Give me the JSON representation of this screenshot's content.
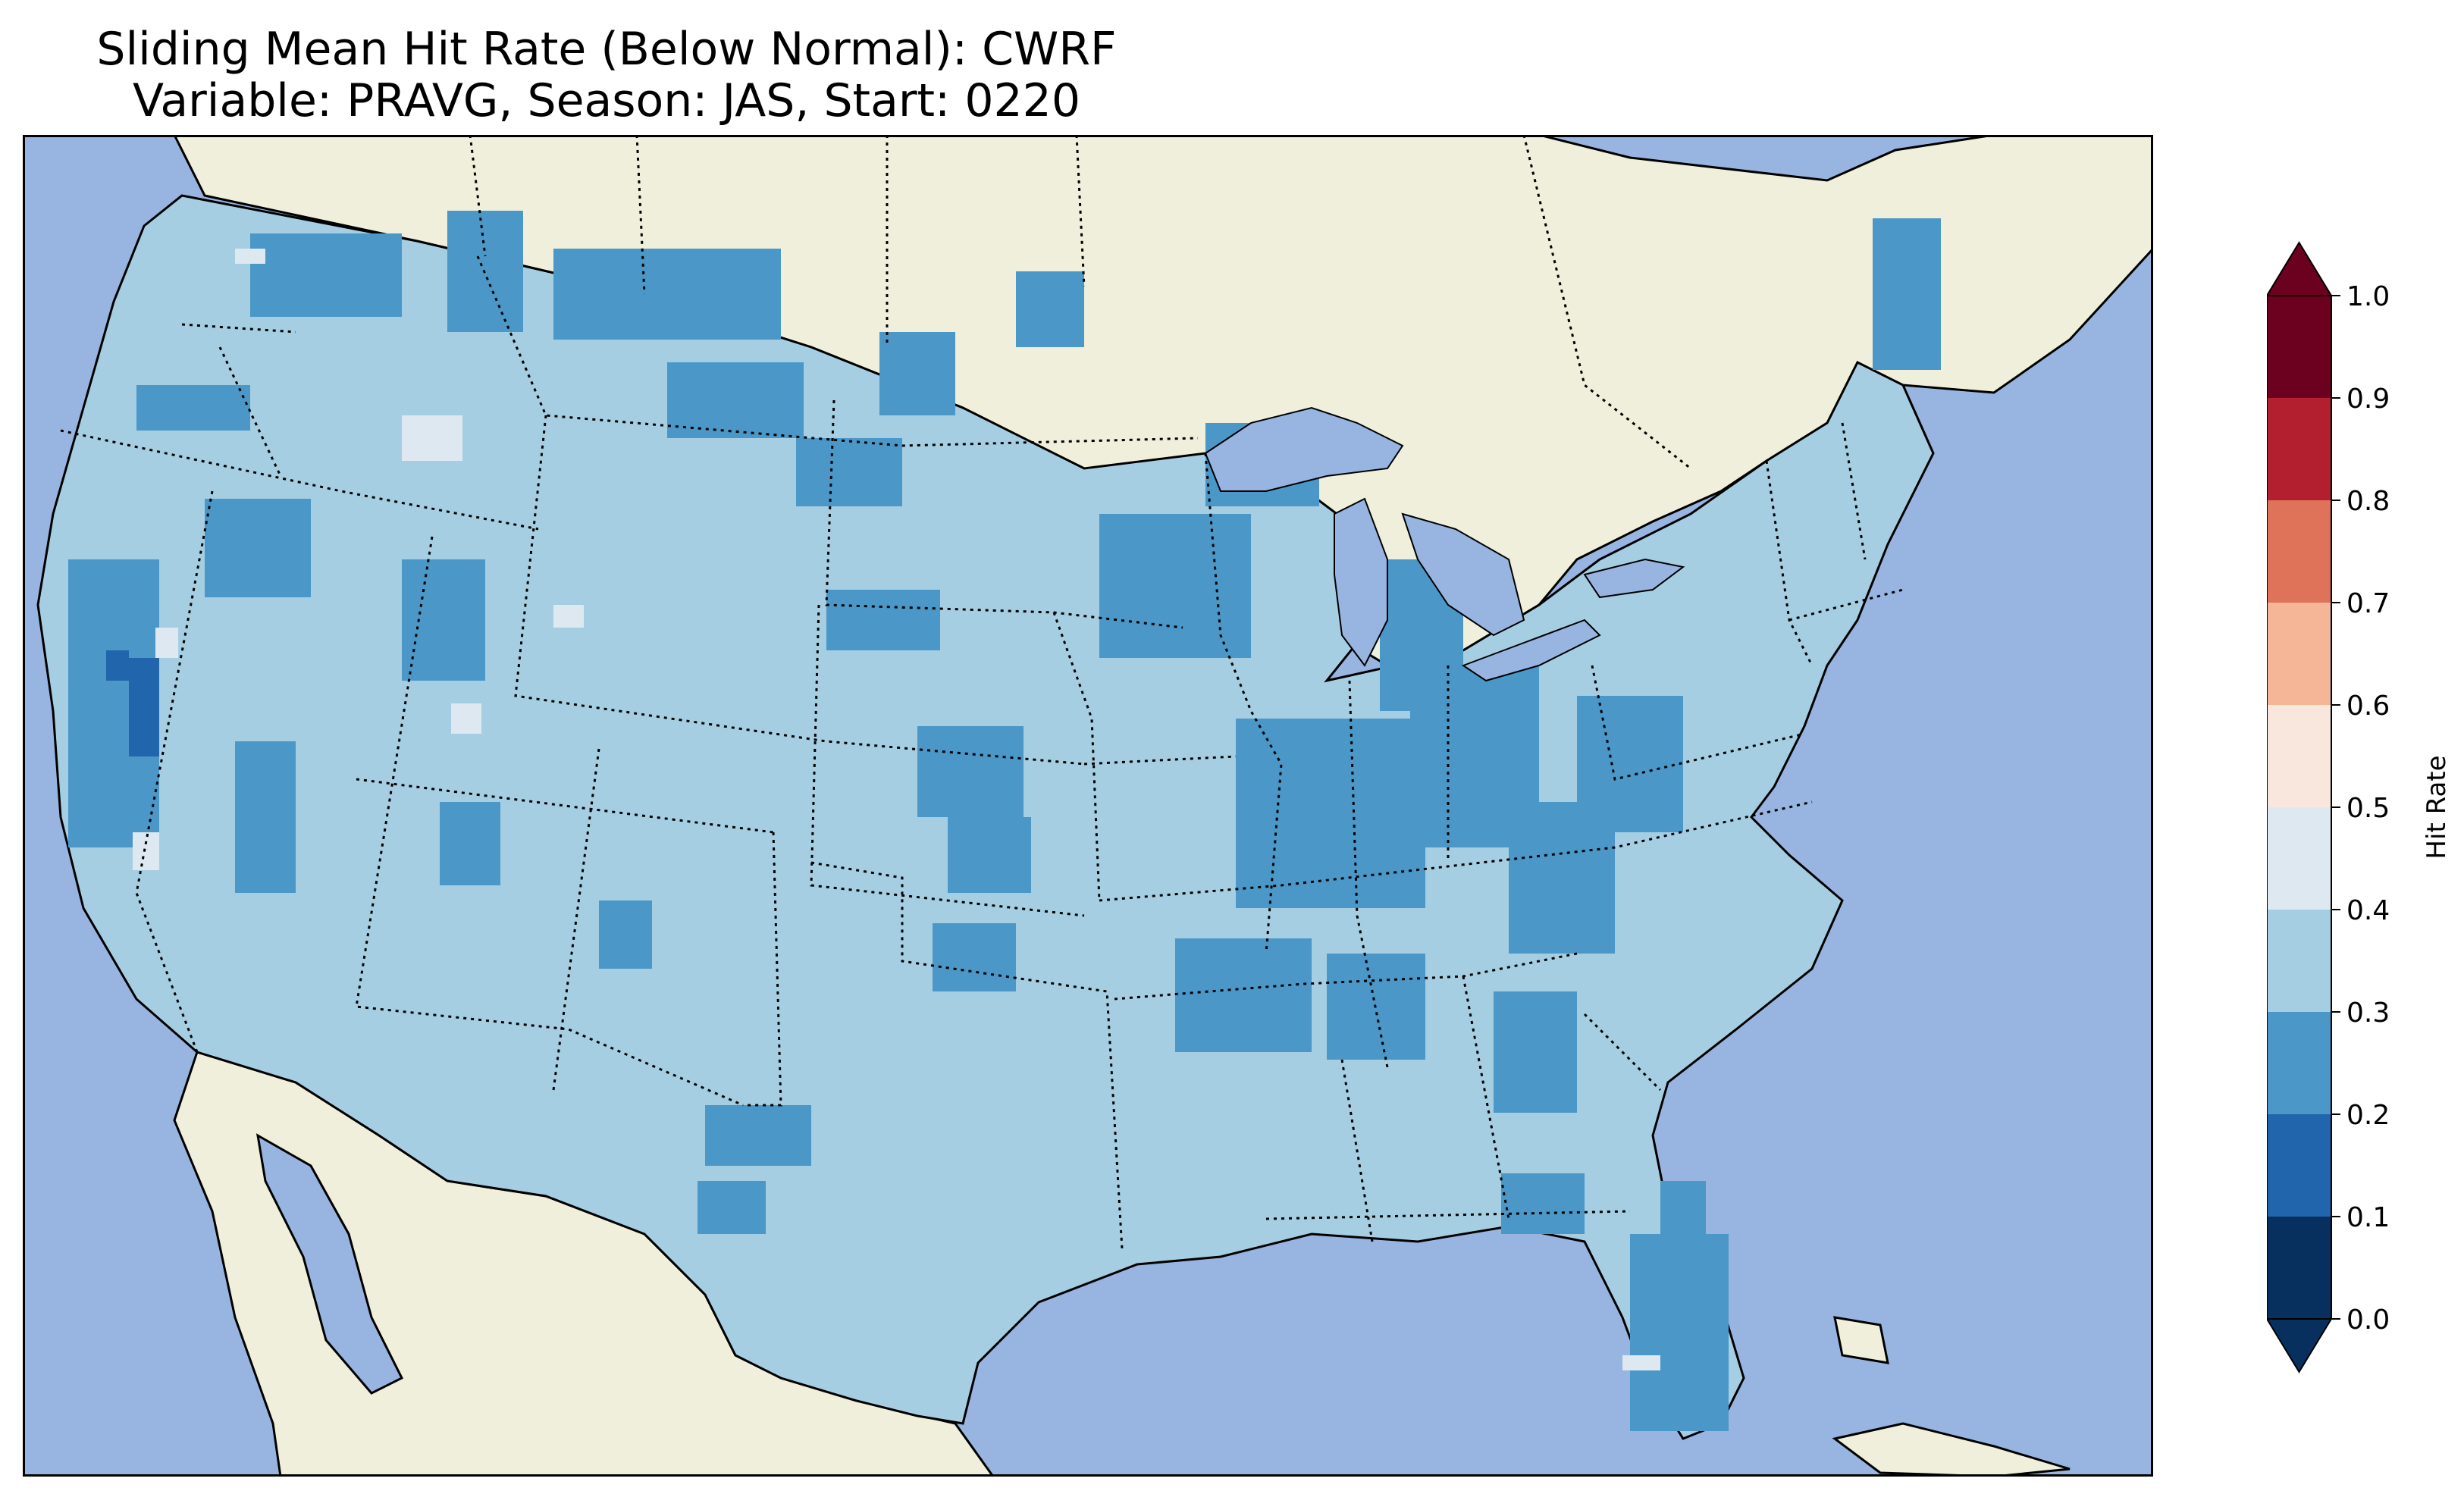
{
  "title": {
    "line1": "Sliding Mean Hit Rate (Below Normal): CWRF",
    "line2": "Variable: PRAVG, Season: JAS, Start: 0220"
  },
  "colors": {
    "ocean": "#98b4e0",
    "land": "#efefdc",
    "lake": "#98b4e0"
  },
  "colorbar": {
    "label": "Hit Rate",
    "ticks": [
      "0.0",
      "0.1",
      "0.2",
      "0.3",
      "0.4",
      "0.5",
      "0.6",
      "0.7",
      "0.8",
      "0.9",
      "1.0"
    ],
    "bins": [
      {
        "range": [
          0.0,
          0.1
        ],
        "color": "#08305e"
      },
      {
        "range": [
          0.1,
          0.2
        ],
        "color": "#2166ac"
      },
      {
        "range": [
          0.2,
          0.3
        ],
        "color": "#4a97c8"
      },
      {
        "range": [
          0.3,
          0.4
        ],
        "color": "#a6cee3"
      },
      {
        "range": [
          0.4,
          0.5
        ],
        "color": "#dde8f1"
      },
      {
        "range": [
          0.5,
          0.6
        ],
        "color": "#f9e6dc"
      },
      {
        "range": [
          0.6,
          0.7
        ],
        "color": "#f5b597"
      },
      {
        "range": [
          0.7,
          0.8
        ],
        "color": "#de735a"
      },
      {
        "range": [
          0.8,
          0.9
        ],
        "color": "#b31f2f"
      },
      {
        "range": [
          0.9,
          1.0
        ],
        "color": "#6b001f"
      }
    ],
    "extend": "both"
  },
  "map": {
    "projection": "Lambert conformal (CONUS)",
    "dominant_bin": "0.3–0.4",
    "patch_bins": [
      "0.2–0.3",
      "0.1–0.2",
      "0.4–0.5"
    ]
  }
}
